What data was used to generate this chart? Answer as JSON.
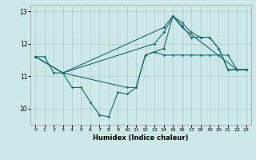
{
  "xlabel": "Humidex (Indice chaleur)",
  "background_color": "#cce8e8",
  "grid_color": "#aacccc",
  "line_color": "#1a6b6b",
  "xlim": [
    -0.5,
    23.5
  ],
  "ylim": [
    9.5,
    13.2
  ],
  "yticks": [
    10,
    11,
    12,
    13
  ],
  "xticks": [
    0,
    1,
    2,
    3,
    4,
    5,
    6,
    7,
    8,
    9,
    10,
    11,
    12,
    13,
    14,
    15,
    16,
    17,
    18,
    19,
    20,
    21,
    22,
    23
  ],
  "series": [
    {
      "x": [
        0,
        1,
        2,
        3,
        4,
        5,
        6,
        7,
        8,
        9,
        10,
        11,
        12,
        13,
        14,
        15,
        16,
        17,
        18,
        19,
        20,
        21,
        22,
        23
      ],
      "y": [
        11.6,
        11.6,
        11.1,
        11.1,
        10.65,
        10.65,
        10.2,
        9.8,
        9.75,
        10.5,
        10.45,
        10.65,
        11.65,
        11.75,
        11.65,
        11.65,
        11.65,
        11.65,
        11.65,
        11.65,
        11.65,
        11.65,
        11.2,
        11.2
      ]
    },
    {
      "x": [
        0,
        3,
        13,
        14,
        15,
        16,
        17,
        18,
        19,
        20,
        21,
        22,
        23
      ],
      "y": [
        11.6,
        11.1,
        12.0,
        12.35,
        12.85,
        12.65,
        12.35,
        12.2,
        12.2,
        11.85,
        11.2,
        11.2,
        11.2
      ]
    },
    {
      "x": [
        0,
        3,
        14,
        15,
        16,
        22,
        23
      ],
      "y": [
        11.6,
        11.1,
        12.5,
        12.85,
        12.5,
        11.2,
        11.2
      ]
    },
    {
      "x": [
        0,
        3,
        10,
        11,
        12,
        13,
        14,
        15,
        16,
        17,
        18,
        19,
        20,
        21,
        22,
        23
      ],
      "y": [
        11.6,
        11.1,
        10.65,
        10.65,
        11.65,
        11.75,
        11.85,
        12.85,
        12.55,
        12.2,
        12.2,
        12.2,
        11.85,
        11.2,
        11.2,
        11.2
      ]
    }
  ]
}
